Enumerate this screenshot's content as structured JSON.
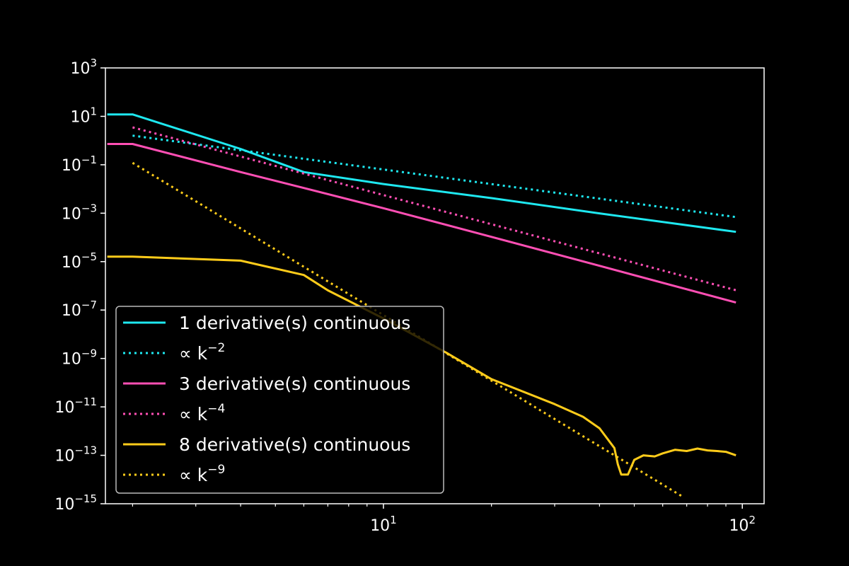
{
  "chart_data": {
    "type": "line",
    "title": "",
    "xlabel": "",
    "ylabel": "",
    "xscale": "log",
    "yscale": "log",
    "xlim": [
      1.68,
      115
    ],
    "ylim": [
      1e-15,
      1000.0
    ],
    "grid": false,
    "legend_placement": "lower-left",
    "background": "#000000",
    "foreground": "#ffffff",
    "x_ticks": [
      {
        "value": 10,
        "base": "10",
        "exp": "1"
      },
      {
        "value": 100,
        "base": "10",
        "exp": "2"
      }
    ],
    "y_ticks": [
      {
        "value": 1000.0,
        "base": "10",
        "exp": "3"
      },
      {
        "value": 10.0,
        "base": "10",
        "exp": "1"
      },
      {
        "value": 0.1,
        "base": "10",
        "exp": "−1"
      },
      {
        "value": 0.001,
        "base": "10",
        "exp": "−3"
      },
      {
        "value": 1e-05,
        "base": "10",
        "exp": "−5"
      },
      {
        "value": 1e-07,
        "base": "10",
        "exp": "−7"
      },
      {
        "value": 1e-09,
        "base": "10",
        "exp": "−9"
      },
      {
        "value": 1e-11,
        "base": "10",
        "exp": "−11"
      },
      {
        "value": 1e-13,
        "base": "10",
        "exp": "−13"
      },
      {
        "value": 1e-15,
        "base": "10",
        "exp": "−15"
      }
    ],
    "series": [
      {
        "name": "1 derivative(s) continuous",
        "color": "#1ee8f0",
        "style": "solid",
        "points": [
          [
            1.7,
            12
          ],
          [
            2,
            12
          ],
          [
            4,
            0.45
          ],
          [
            6,
            0.05
          ],
          [
            10,
            0.016
          ],
          [
            20,
            0.0042
          ],
          [
            40,
            0.00098
          ],
          [
            96,
            0.00017
          ]
        ]
      },
      {
        "name": "∝ k",
        "sup": "−2",
        "color": "#1ee8f0",
        "style": "dotted",
        "points": [
          [
            2,
            1.6
          ],
          [
            96,
            0.00069
          ]
        ]
      },
      {
        "name": "3 derivative(s) continuous",
        "color": "#ff4fb4",
        "style": "solid",
        "points": [
          [
            1.7,
            0.72
          ],
          [
            2,
            0.72
          ],
          [
            4,
            0.05
          ],
          [
            6,
            0.011
          ],
          [
            10,
            0.0016
          ],
          [
            20,
            0.000105
          ],
          [
            40,
            6.7e-06
          ],
          [
            96,
            2.05e-07
          ]
        ]
      },
      {
        "name": "∝ k",
        "sup": "−4",
        "color": "#ff4fb4",
        "style": "dotted",
        "points": [
          [
            2,
            3.5
          ],
          [
            96,
            6.6e-07
          ]
        ]
      },
      {
        "name": "8 derivative(s) continuous",
        "color": "#ffcc1a",
        "style": "solid",
        "points": [
          [
            1.7,
            1.6e-05
          ],
          [
            2,
            1.6e-05
          ],
          [
            4,
            1.1e-05
          ],
          [
            6,
            2.8e-06
          ],
          [
            7,
            6.5e-07
          ],
          [
            10,
            4.5e-08
          ],
          [
            15,
            1.7e-09
          ],
          [
            20,
            1.4e-10
          ],
          [
            30,
            1.3e-11
          ],
          [
            36,
            3.9e-12
          ],
          [
            40,
            1.3e-12
          ],
          [
            44,
            2e-13
          ],
          [
            45,
            4.2e-14
          ],
          [
            46,
            1.6e-14
          ],
          [
            48,
            1.6e-14
          ],
          [
            50,
            6.5e-14
          ],
          [
            53,
            1e-13
          ],
          [
            57,
            9e-14
          ],
          [
            60,
            1.2e-13
          ],
          [
            65,
            1.7e-13
          ],
          [
            70,
            1.5e-13
          ],
          [
            75,
            1.9e-13
          ],
          [
            80,
            1.6e-13
          ],
          [
            85,
            1.5e-13
          ],
          [
            90,
            1.4e-13
          ],
          [
            96,
            1e-13
          ]
        ]
      },
      {
        "name": "∝ k",
        "sup": "−9",
        "color": "#ffcc1a",
        "style": "dotted",
        "points": [
          [
            2,
            0.12
          ],
          [
            68,
            2e-15
          ]
        ]
      }
    ]
  }
}
